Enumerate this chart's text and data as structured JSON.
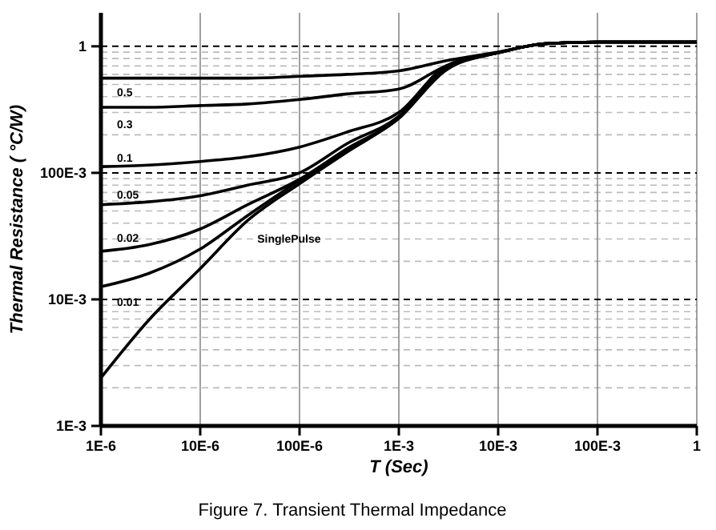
{
  "chart_data": {
    "type": "line",
    "xlabel": "T (Sec)",
    "ylabel": "Thermal Resistance ( °C/W)",
    "log": "xy",
    "grid": true,
    "line_style": "solid",
    "marker": "none",
    "x": [
      1e-06,
      3e-06,
      1e-05,
      3e-05,
      0.0001,
      0.0003,
      0.001,
      0.003,
      0.01,
      0.03,
      0.1,
      1
    ],
    "xlim": [
      1e-06,
      1
    ],
    "ylim": [
      0.001,
      1.84
    ],
    "xticks": [
      {
        "value": 1e-06,
        "label": "1E-6"
      },
      {
        "value": 1e-05,
        "label": "10E-6"
      },
      {
        "value": 0.0001,
        "label": "100E-6"
      },
      {
        "value": 0.001,
        "label": "1E-3"
      },
      {
        "value": 0.01,
        "label": "10E-3"
      },
      {
        "value": 0.1,
        "label": "100E-3"
      },
      1
    ],
    "yticks": [
      {
        "value": 0.001,
        "label": "1E-3"
      },
      {
        "value": 0.01,
        "label": "10E-3"
      },
      {
        "value": 0.1,
        "label": "100E-3"
      },
      1
    ],
    "series": [
      {
        "name": "0.5",
        "color": "#000000",
        "values": [
          0.56,
          0.56,
          0.56,
          0.56,
          0.58,
          0.6,
          0.64,
          0.77,
          0.9,
          1.05,
          1.08,
          1.08
        ]
      },
      {
        "name": "0.3",
        "color": "#000000",
        "values": [
          0.33,
          0.33,
          0.34,
          0.35,
          0.38,
          0.42,
          0.46,
          0.7,
          0.89,
          1.05,
          1.08,
          1.08
        ]
      },
      {
        "name": "0.1",
        "color": "#000000",
        "values": [
          0.112,
          0.115,
          0.123,
          0.134,
          0.16,
          0.21,
          0.3,
          0.7,
          0.89,
          1.05,
          1.08,
          1.08
        ]
      },
      {
        "name": "0.05",
        "color": "#000000",
        "values": [
          0.056,
          0.059,
          0.066,
          0.08,
          0.1,
          0.17,
          0.28,
          0.7,
          0.89,
          1.05,
          1.08,
          1.08
        ]
      },
      {
        "name": "0.02",
        "color": "#000000",
        "values": [
          0.024,
          0.027,
          0.036,
          0.056,
          0.089,
          0.155,
          0.27,
          0.68,
          0.89,
          1.05,
          1.08,
          1.08
        ]
      },
      {
        "name": "0.01",
        "color": "#000000",
        "values": [
          0.0126,
          0.016,
          0.025,
          0.046,
          0.087,
          0.15,
          0.27,
          0.67,
          0.89,
          1.05,
          1.08,
          1.08
        ]
      },
      {
        "name": "SinglePulse",
        "color": "#000000",
        "values": [
          0.0024,
          0.0068,
          0.0175,
          0.042,
          0.082,
          0.146,
          0.27,
          0.65,
          0.89,
          1.05,
          1.08,
          1.08
        ]
      }
    ],
    "annotations": [
      "Figure 7. Transient Thermal Impedance"
    ]
  }
}
